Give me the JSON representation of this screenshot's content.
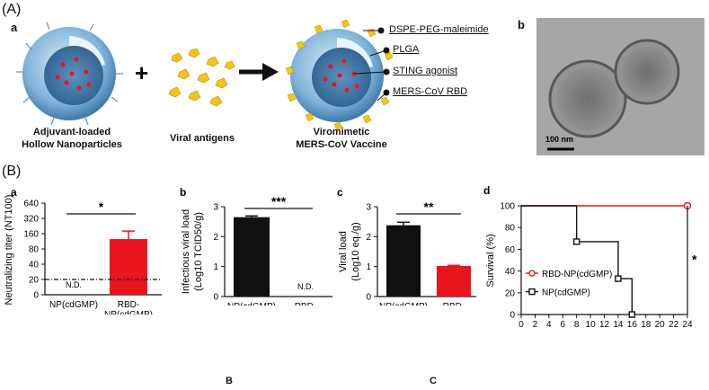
{
  "figure": {
    "panel_A": "(A)",
    "panel_B": "(B)",
    "sub_a_top": "a",
    "sub_b_top": "b",
    "labels": {
      "dspe": "DSPE-PEG-maleimide",
      "plga": "PLGA",
      "sting": "STING agonist",
      "rbd": "MERS-CoV RBD"
    },
    "captions": {
      "np_line1": "Adjuvant-loaded",
      "np_line2": "Hollow Nanoparticles",
      "antigens": "Viral antigens",
      "vaccine_line1": "Viromimetic",
      "vaccine_line2": "MERS-CoV Vaccine"
    },
    "plus": "+",
    "scale_bar": "100 nm",
    "bottom_letter_1": "B",
    "bottom_letter_2": "C",
    "colors": {
      "black": "#111111",
      "red": "#e8141e",
      "shell": "#7fb3da"
    }
  },
  "chart_data": [
    {
      "id": "a",
      "letter": "a",
      "type": "bar",
      "ylabel": "Neutralizing titer (NT100)",
      "y_ticks": [
        "0",
        "20",
        "40",
        "80",
        "160",
        "320",
        "640"
      ],
      "categories": [
        "NP(cdGMP)",
        "RBD-\nNP(cdGMP)"
      ],
      "category_lines": [
        [
          "NP(cdGMP)"
        ],
        [
          "RBD-",
          "NP(cdGMP)"
        ]
      ],
      "values": [
        null,
        125
      ],
      "errors": [
        null,
        55
      ],
      "colors": [
        "#111111",
        "#e8141e"
      ],
      "nd_label": "N.D.",
      "threshold": 20,
      "significance": "*"
    },
    {
      "id": "b",
      "letter": "b",
      "type": "bar",
      "ylabel": "Infectious viral load",
      "ylabel2": "(Log10 TCID50/g)",
      "ylim": [
        0,
        3
      ],
      "y_ticks": [
        "0",
        "1",
        "2",
        "3"
      ],
      "categories": [
        "NP(cdGMP)",
        "RBD-\nNP(cdGMP)"
      ],
      "category_lines": [
        [
          "NP(cdGMP)"
        ],
        [
          "RBD-",
          "NP(cdGMP)"
        ]
      ],
      "values": [
        2.65,
        null
      ],
      "errors": [
        0.04,
        null
      ],
      "colors": [
        "#111111",
        "#e8141e"
      ],
      "nd_label": "N.D.",
      "significance": "***"
    },
    {
      "id": "c",
      "letter": "c",
      "type": "bar",
      "ylabel": "Viral load",
      "ylabel2": "(Log10 eq./g)",
      "ylim": [
        0,
        3
      ],
      "y_ticks": [
        "0",
        "1",
        "2",
        "3"
      ],
      "categories": [
        "NP(cdGMP)",
        "RBD-\nNP(cdGMP)"
      ],
      "category_lines": [
        [
          "NP(cdGMP)"
        ],
        [
          "RBD-",
          "NP(cdGMP)"
        ]
      ],
      "values": [
        2.38,
        1.02
      ],
      "errors": [
        0.1,
        0.02
      ],
      "colors": [
        "#111111",
        "#e8141e"
      ],
      "significance": "**"
    },
    {
      "id": "d",
      "letter": "d",
      "type": "line",
      "xlabel": "Days post infection",
      "ylabel": "Survival (%)",
      "xlim": [
        0,
        24
      ],
      "ylim": [
        0,
        100
      ],
      "x_ticks": [
        "0",
        "2",
        "4",
        "6",
        "8",
        "10",
        "12",
        "14",
        "16",
        "18",
        "20",
        "22",
        "24"
      ],
      "y_ticks": [
        "0",
        "20",
        "40",
        "60",
        "80",
        "100"
      ],
      "series": [
        {
          "name": "RBD-NP(cdGMP)",
          "color": "#e8141e",
          "marker": "circle",
          "x": [
            0,
            24
          ],
          "y": [
            100,
            100
          ]
        },
        {
          "name": "NP(cdGMP)",
          "color": "#111111",
          "marker": "square",
          "x": [
            0,
            8,
            8,
            14,
            14,
            16,
            16
          ],
          "y": [
            100,
            100,
            67,
            67,
            33,
            33,
            0
          ]
        }
      ],
      "markers_x": {
        "RBD-NP(cdGMP)": [
          24
        ],
        "NP(cdGMP)": [
          8,
          14,
          16
        ]
      },
      "markers_y": {
        "RBD-NP(cdGMP)": [
          100
        ],
        "NP(cdGMP)": [
          67,
          33,
          0
        ]
      },
      "significance": "*"
    }
  ]
}
